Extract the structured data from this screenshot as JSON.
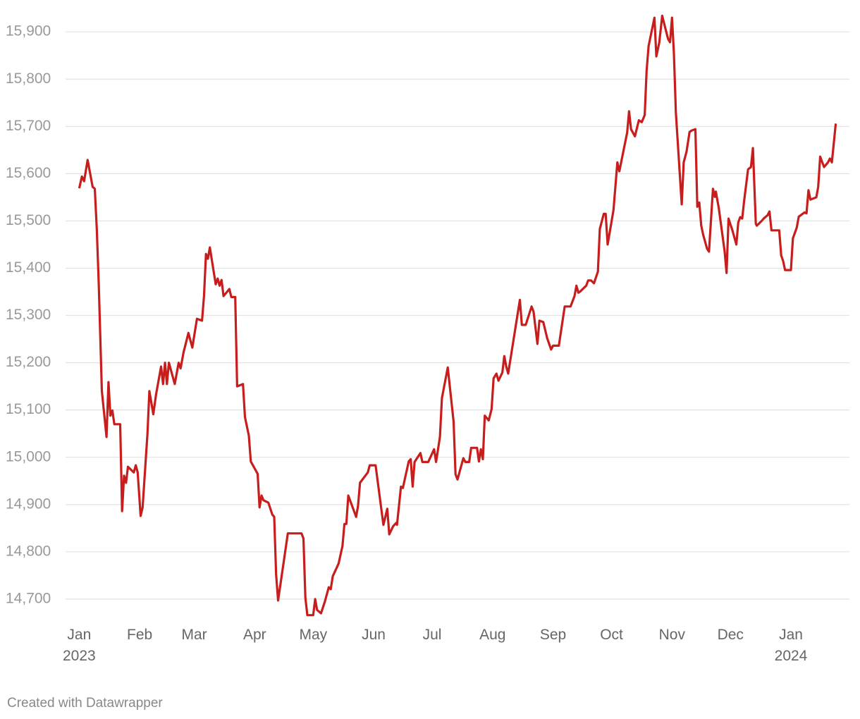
{
  "chart_data": {
    "type": "line",
    "footer": "Created with Datawrapper",
    "x": [
      0,
      1.4,
      2.5,
      4.3,
      6.9,
      8,
      9,
      10,
      11.6,
      14,
      15,
      16,
      17,
      18,
      21,
      22,
      23,
      24,
      25,
      28,
      29,
      30,
      31.5,
      32.5,
      35,
      36,
      38,
      39.4,
      42,
      43,
      44,
      45,
      46,
      49,
      51,
      52,
      53.5,
      56,
      58,
      60.4,
      63,
      64,
      65,
      66,
      67,
      70,
      71,
      72,
      73,
      74,
      77,
      78,
      80,
      81,
      84,
      85,
      87,
      88,
      91.5,
      92.5,
      93.5,
      94.5,
      97,
      99,
      100,
      101,
      102,
      105,
      107,
      114,
      115,
      116,
      117,
      120,
      121,
      122,
      124,
      126,
      128,
      129,
      130,
      133,
      135,
      136,
      137,
      138,
      142,
      143,
      144,
      148,
      149,
      152,
      156,
      158,
      159,
      161,
      162.5,
      163,
      165,
      166,
      169,
      170,
      171,
      172,
      175,
      176,
      179,
      182,
      183,
      185,
      186,
      189,
      192,
      193,
      194,
      197,
      198,
      200,
      201,
      204,
      205,
      206,
      207,
      208,
      210,
      211.5,
      212.5,
      214,
      215,
      217,
      218,
      219,
      220,
      226,
      227,
      229,
      232,
      233,
      235,
      236,
      238,
      240,
      242,
      243,
      246,
      249,
      252,
      254,
      255,
      256,
      257,
      260,
      261,
      262.5,
      264,
      266,
      267,
      269,
      270,
      271,
      274,
      276,
      277,
      281,
      282,
      283,
      285,
      287,
      288.5,
      290,
      291,
      292,
      295,
      296,
      297.5,
      299,
      302,
      303,
      304,
      305,
      306,
      309,
      310,
      311.5,
      313,
      314,
      316,
      317,
      318,
      319,
      320,
      322,
      323,
      325,
      326,
      326.5,
      328,
      329,
      331,
      332,
      333,
      335,
      337,
      338,
      339,
      340,
      341,
      343,
      344.5,
      345.5,
      347,
      347.5,
      350,
      351,
      353,
      354,
      355,
      359,
      360,
      361,
      362,
      365,
      366,
      368,
      369,
      372,
      373,
      374,
      375,
      378,
      379,
      380,
      382,
      384,
      385,
      386,
      388
    ],
    "series": [
      {
        "color": "#c71e1d",
        "values": [
          15569,
          15594,
          15584,
          15629,
          15572,
          15568,
          15483,
          15371,
          15140,
          15043,
          15159,
          15088,
          15099,
          15070,
          15070,
          14886,
          14961,
          14946,
          14980,
          14968,
          14983,
          14968,
          14876,
          14894,
          15050,
          15140,
          15091,
          15133,
          15192,
          15155,
          15200,
          15155,
          15200,
          15155,
          15200,
          15188,
          15222,
          15263,
          15232,
          15293,
          15289,
          15341,
          15430,
          15420,
          15444,
          15366,
          15378,
          15363,
          15375,
          15341,
          15356,
          15339,
          15339,
          15150,
          15155,
          15085,
          15046,
          14991,
          14965,
          14894,
          14919,
          14909,
          14904,
          14879,
          14874,
          14752,
          14697,
          14782,
          14839,
          14839,
          14828,
          14703,
          14666,
          14666,
          14700,
          14677,
          14670,
          14695,
          14725,
          14721,
          14748,
          14775,
          14812,
          14859,
          14859,
          14919,
          14874,
          14897,
          14946,
          14968,
          14983,
          14983,
          14857,
          14891,
          14837,
          14854,
          14861,
          14857,
          14938,
          14935,
          14991,
          14996,
          14938,
          14990,
          15009,
          14990,
          14990,
          15017,
          14990,
          15043,
          15125,
          15190,
          15075,
          14964,
          14953,
          14998,
          14990,
          14990,
          15020,
          15020,
          14991,
          15017,
          14996,
          15088,
          15078,
          15102,
          15167,
          15177,
          15162,
          15179,
          15214,
          15192,
          15177,
          15333,
          15280,
          15280,
          15319,
          15308,
          15240,
          15289,
          15286,
          15252,
          15228,
          15236,
          15236,
          15319,
          15319,
          15341,
          15363,
          15348,
          15351,
          15363,
          15374,
          15374,
          15368,
          15393,
          15483,
          15515,
          15515,
          15450,
          15523,
          15624,
          15605,
          15687,
          15732,
          15694,
          15679,
          15713,
          15709,
          15724,
          15818,
          15870,
          15930,
          15848,
          15878,
          15934,
          15885,
          15878,
          15930,
          15855,
          15729,
          15535,
          15624,
          15647,
          15688,
          15691,
          15694,
          15530,
          15539,
          15490,
          15471,
          15441,
          15435,
          15568,
          15551,
          15562,
          15527,
          15497,
          15435,
          15390,
          15505,
          15480,
          15450,
          15497,
          15508,
          15505,
          15542,
          15609,
          15614,
          15654,
          15494,
          15490,
          15500,
          15505,
          15512,
          15520,
          15480,
          15480,
          15427,
          15415,
          15396,
          15396,
          15463,
          15486,
          15509,
          15518,
          15516,
          15565,
          15545,
          15550,
          15572,
          15636,
          15614,
          15624,
          15632,
          15624,
          15706
        ]
      }
    ],
    "xlim": [
      -7,
      395
    ],
    "xticks": [
      {
        "value": 0,
        "label": "Jan 2023"
      },
      {
        "value": 31,
        "label": "Feb"
      },
      {
        "value": 59,
        "label": "Mar"
      },
      {
        "value": 90,
        "label": "Apr"
      },
      {
        "value": 120,
        "label": "May"
      },
      {
        "value": 151,
        "label": "Jun"
      },
      {
        "value": 181,
        "label": "Jul"
      },
      {
        "value": 212,
        "label": "Aug"
      },
      {
        "value": 243,
        "label": "Sep"
      },
      {
        "value": 273,
        "label": "Oct"
      },
      {
        "value": 304,
        "label": "Nov"
      },
      {
        "value": 334,
        "label": "Dec"
      },
      {
        "value": 365,
        "label": "Jan 2024"
      }
    ],
    "ylim": [
      14670,
      15945
    ],
    "yticks": [
      {
        "value": 14700,
        "label": "14,700"
      },
      {
        "value": 14800,
        "label": "14,800"
      },
      {
        "value": 14900,
        "label": "14,900"
      },
      {
        "value": 15000,
        "label": "15,000"
      },
      {
        "value": 15100,
        "label": "15,100"
      },
      {
        "value": 15200,
        "label": "15,200"
      },
      {
        "value": 15300,
        "label": "15,300"
      },
      {
        "value": 15400,
        "label": "15,400"
      },
      {
        "value": 15500,
        "label": "15,500"
      },
      {
        "value": 15600,
        "label": "15,600"
      },
      {
        "value": 15700,
        "label": "15,700"
      },
      {
        "value": 15800,
        "label": "15,800"
      },
      {
        "value": 15900,
        "label": "15,900"
      }
    ],
    "grid": true
  }
}
